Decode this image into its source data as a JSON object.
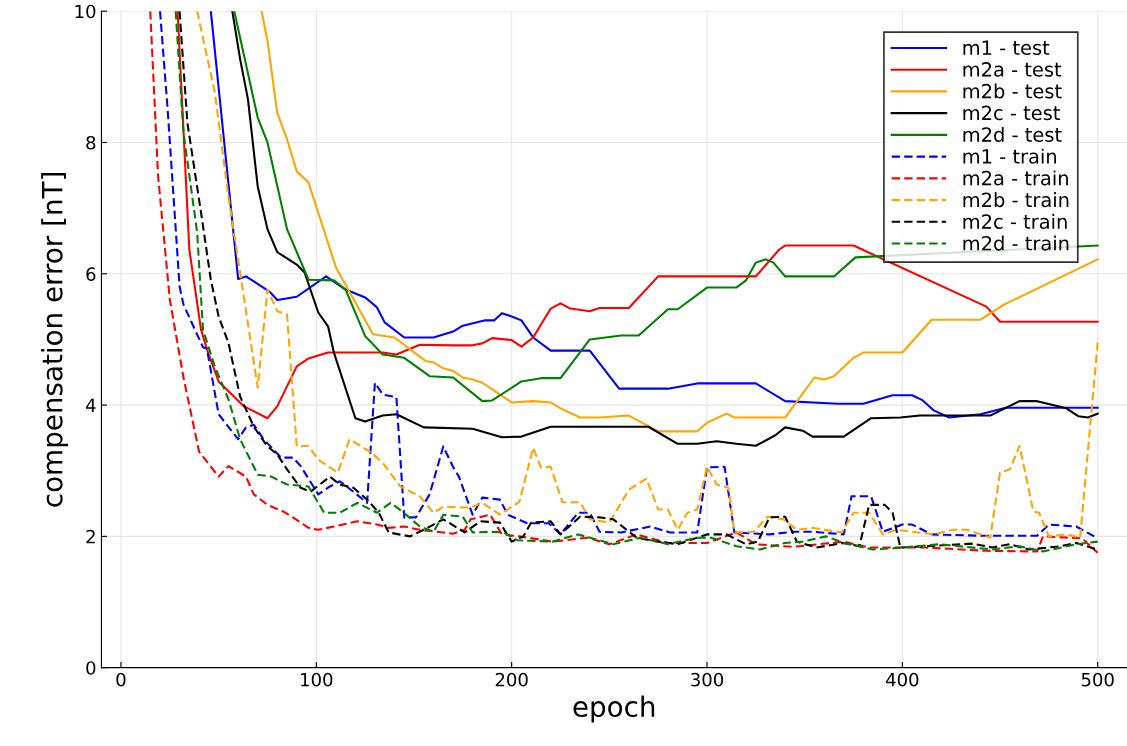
{
  "chart_data": {
    "type": "line",
    "xlabel": "epoch",
    "ylabel": "compensation error [nT]",
    "xlim": [
      -10,
      515
    ],
    "ylim": [
      0,
      10
    ],
    "xticks": [
      0,
      100,
      200,
      300,
      400,
      500
    ],
    "yticks": [
      0,
      2,
      4,
      6,
      8,
      10
    ],
    "grid": true,
    "legend": "top right",
    "marker": "none",
    "series": [
      {
        "name": "m1 - test",
        "color": "#0000ff",
        "line_style": "solid",
        "x": [
          46,
          60,
          64,
          76,
          80,
          90,
          105,
          115,
          125,
          131,
          135,
          145,
          153,
          160,
          170,
          175,
          186,
          191,
          195,
          200,
          205,
          211,
          220,
          240,
          255,
          280,
          295,
          325,
          340,
          367,
          380,
          395,
          405,
          410,
          416,
          424,
          440,
          453,
          500
        ],
        "values": [
          10,
          5.92,
          5.96,
          5.73,
          5.6,
          5.65,
          5.96,
          5.76,
          5.64,
          5.49,
          5.26,
          5.03,
          5.03,
          5.03,
          5.12,
          5.21,
          5.29,
          5.29,
          5.4,
          5.35,
          5.29,
          5.03,
          4.83,
          4.83,
          4.25,
          4.25,
          4.33,
          4.33,
          4.06,
          4.02,
          4.02,
          4.15,
          4.15,
          4.08,
          3.92,
          3.81,
          3.86,
          3.96,
          3.96
        ]
      },
      {
        "name": "m2a - test",
        "color": "#ff0000",
        "line_style": "solid",
        "x": [
          29,
          35,
          41,
          44,
          50,
          63,
          75,
          80,
          90,
          96,
          106,
          134,
          141,
          153,
          170,
          180,
          185,
          190,
          200,
          205,
          211,
          220,
          225,
          230,
          240,
          245,
          260,
          275,
          325,
          337,
          340,
          375,
          443,
          450,
          500
        ],
        "values": [
          10,
          6.37,
          5.15,
          4.85,
          4.36,
          3.98,
          3.8,
          3.98,
          4.59,
          4.71,
          4.8,
          4.8,
          4.77,
          4.92,
          4.91,
          4.91,
          4.94,
          5.02,
          4.99,
          4.89,
          5.03,
          5.47,
          5.55,
          5.47,
          5.43,
          5.48,
          5.48,
          5.96,
          5.96,
          6.37,
          6.43,
          6.43,
          5.5,
          5.27,
          5.27
        ]
      },
      {
        "name": "m2b - test",
        "color": "#ffa500",
        "line_style": "solid",
        "x": [
          72,
          75,
          80,
          85,
          90,
          96,
          110,
          129,
          140,
          156,
          160,
          165,
          170,
          175,
          180,
          185,
          200,
          211,
          220,
          225,
          235,
          245,
          260,
          275,
          295,
          300,
          310,
          314,
          337,
          340,
          355,
          360,
          365,
          375,
          380,
          400,
          415,
          440,
          452,
          500
        ],
        "values": [
          10,
          9.55,
          8.45,
          8.05,
          7.56,
          7.39,
          6.1,
          5.08,
          5.03,
          4.67,
          4.65,
          4.56,
          4.52,
          4.42,
          4.39,
          4.34,
          4.04,
          4.06,
          4.04,
          3.95,
          3.81,
          3.81,
          3.84,
          3.6,
          3.6,
          3.73,
          3.87,
          3.81,
          3.81,
          3.81,
          4.42,
          4.39,
          4.44,
          4.72,
          4.8,
          4.8,
          5.3,
          5.3,
          5.53,
          6.22
        ]
      },
      {
        "name": "m2c - test",
        "color": "#000000",
        "line_style": "solid",
        "x": [
          57,
          61,
          65,
          70,
          75,
          80,
          90,
          94,
          101,
          106,
          109,
          120,
          125,
          134,
          141,
          155,
          180,
          195,
          205,
          220,
          270,
          285,
          295,
          305,
          315,
          325,
          335,
          340,
          349,
          354,
          370,
          384,
          399,
          409,
          445,
          460,
          469,
          484,
          490,
          495,
          500
        ],
        "values": [
          10,
          9.27,
          8.66,
          7.33,
          6.68,
          6.33,
          6.14,
          6.02,
          5.41,
          5.2,
          4.8,
          3.8,
          3.75,
          3.84,
          3.86,
          3.66,
          3.64,
          3.51,
          3.52,
          3.67,
          3.67,
          3.41,
          3.41,
          3.45,
          3.41,
          3.38,
          3.54,
          3.66,
          3.61,
          3.52,
          3.52,
          3.8,
          3.81,
          3.84,
          3.84,
          4.06,
          4.06,
          3.95,
          3.83,
          3.81,
          3.87
        ]
      },
      {
        "name": "m2d - test",
        "color": "#008000",
        "line_style": "solid",
        "x": [
          58,
          70,
          75,
          85,
          96,
          109,
          115,
          125,
          134,
          145,
          158,
          170,
          185,
          190,
          205,
          215,
          225,
          240,
          256,
          265,
          280,
          285,
          300,
          315,
          320,
          325,
          330,
          334,
          340,
          365,
          376,
          500
        ],
        "values": [
          10,
          8.38,
          8.0,
          6.68,
          5.91,
          5.9,
          5.76,
          5.05,
          4.77,
          4.72,
          4.44,
          4.42,
          4.06,
          4.07,
          4.36,
          4.41,
          4.41,
          5.0,
          5.06,
          5.06,
          5.46,
          5.46,
          5.79,
          5.79,
          5.9,
          6.17,
          6.22,
          6.17,
          5.96,
          5.96,
          6.25,
          6.43
        ]
      },
      {
        "name": "m1 - train",
        "color": "#0000ff",
        "line_style": "dashed",
        "x": [
          20,
          24,
          30,
          32,
          42,
          44,
          50,
          60,
          64,
          68,
          73,
          82,
          88,
          92,
          101,
          107,
          112,
          119,
          126,
          130,
          134,
          141,
          145,
          151,
          158,
          165,
          170,
          173,
          180,
          185,
          194,
          198,
          208,
          219,
          225,
          234,
          240,
          245,
          256,
          271,
          281,
          295,
          300,
          309,
          314,
          332,
          344,
          354,
          370,
          374,
          384,
          390,
          400,
          405,
          415,
          440,
          469,
          475,
          489,
          500
        ],
        "values": [
          10,
          8.46,
          5.81,
          5.53,
          4.88,
          4.86,
          3.86,
          3.48,
          3.66,
          3.7,
          3.48,
          3.2,
          3.2,
          3.07,
          2.64,
          2.76,
          2.84,
          2.68,
          2.51,
          4.34,
          4.16,
          4.12,
          2.29,
          2.29,
          2.64,
          3.37,
          3.06,
          2.91,
          2.33,
          2.59,
          2.56,
          2.33,
          2.2,
          2.2,
          2.03,
          2.36,
          2.36,
          2.07,
          2.06,
          2.15,
          2.06,
          2.06,
          3.05,
          3.06,
          2.06,
          2.03,
          2.07,
          2.07,
          2.03,
          2.61,
          2.61,
          2.07,
          2.18,
          2.18,
          2.03,
          2.01,
          2.01,
          2.18,
          2.15,
          1.97
        ]
      },
      {
        "name": "m2a - train",
        "color": "#ff0000",
        "line_style": "dashed",
        "x": [
          15,
          19,
          25,
          32,
          40,
          50,
          55,
          64,
          68,
          75,
          83,
          88,
          96,
          101,
          109,
          121,
          131,
          137,
          145,
          153,
          170,
          176,
          179,
          189,
          195,
          204,
          221,
          239,
          250,
          264,
          280,
          300,
          315,
          325,
          344,
          370,
          383,
          412,
          443,
          469,
          472,
          492,
          500
        ],
        "values": [
          10,
          7.49,
          5.61,
          4.42,
          3.29,
          2.91,
          3.07,
          2.91,
          2.64,
          2.48,
          2.38,
          2.29,
          2.13,
          2.1,
          2.15,
          2.23,
          2.18,
          2.13,
          2.15,
          2.1,
          2.04,
          2.1,
          2.26,
          2.33,
          2.03,
          2.0,
          1.92,
          1.98,
          1.88,
          2.03,
          1.9,
          1.9,
          2.06,
          1.88,
          1.84,
          1.92,
          1.83,
          1.83,
          1.78,
          1.77,
          2.0,
          1.97,
          1.75
        ]
      },
      {
        "name": "m2b - train",
        "color": "#ffa500",
        "line_style": "dashed",
        "x": [
          39,
          48,
          55,
          61,
          70,
          75,
          80,
          85,
          90,
          96,
          101,
          111,
          117,
          128,
          134,
          143,
          153,
          160,
          165,
          179,
          185,
          194,
          204,
          211,
          215,
          220,
          226,
          235,
          240,
          250,
          260,
          269,
          275,
          280,
          285,
          290,
          295,
          300,
          305,
          311,
          314,
          324,
          331,
          339,
          346,
          354,
          369,
          375,
          383,
          390,
          397,
          416,
          426,
          433,
          445,
          450,
          455,
          460,
          464,
          467,
          470,
          475,
          484,
          491,
          500
        ],
        "values": [
          10,
          8.77,
          7.18,
          6.02,
          4.27,
          5.76,
          5.43,
          5.38,
          3.37,
          3.38,
          3.17,
          2.97,
          3.48,
          3.28,
          3.12,
          2.76,
          2.61,
          2.36,
          2.45,
          2.44,
          2.51,
          2.33,
          2.53,
          3.35,
          3.05,
          3.06,
          2.52,
          2.52,
          2.26,
          2.21,
          2.71,
          2.88,
          2.41,
          2.41,
          2.1,
          2.36,
          2.41,
          3.06,
          2.79,
          2.74,
          2.06,
          2.07,
          2.3,
          2.26,
          2.1,
          2.13,
          2.06,
          2.36,
          2.36,
          2.03,
          2.1,
          2.03,
          2.1,
          2.1,
          1.98,
          2.97,
          3.02,
          3.38,
          2.82,
          2.38,
          2.36,
          2.0,
          2.03,
          1.98,
          4.95
        ]
      },
      {
        "name": "m2c - train",
        "color": "#000000",
        "line_style": "dashed",
        "x": [
          30,
          34,
          41,
          46,
          50,
          55,
          61,
          68,
          75,
          80,
          85,
          92,
          97,
          107,
          112,
          119,
          126,
          132,
          137,
          148,
          155,
          165,
          176,
          184,
          194,
          200,
          206,
          210,
          220,
          225,
          235,
          245,
          252,
          264,
          275,
          285,
          300,
          310,
          320,
          326,
          332,
          340,
          346,
          356,
          370,
          378,
          383,
          391,
          395,
          399,
          419,
          436,
          446,
          455,
          465,
          481,
          489,
          500
        ],
        "values": [
          10,
          8.3,
          6.93,
          5.91,
          5.35,
          4.95,
          4.13,
          3.67,
          3.37,
          3.25,
          3.02,
          2.74,
          2.68,
          2.91,
          2.79,
          2.74,
          2.56,
          2.36,
          2.06,
          2.0,
          2.1,
          2.26,
          2.06,
          2.23,
          2.21,
          1.92,
          2.0,
          2.21,
          2.23,
          2.03,
          2.3,
          2.29,
          2.26,
          1.98,
          1.92,
          1.88,
          2.03,
          2.03,
          1.88,
          1.92,
          2.29,
          2.3,
          1.92,
          1.83,
          1.9,
          1.85,
          2.48,
          2.48,
          2.36,
          1.83,
          1.86,
          1.89,
          1.83,
          1.88,
          1.8,
          1.85,
          1.9,
          1.8
        ]
      },
      {
        "name": "m2d - train",
        "color": "#008000",
        "line_style": "dashed",
        "x": [
          28,
          32,
          39,
          42,
          48,
          55,
          61,
          70,
          77,
          85,
          96,
          104,
          112,
          121,
          131,
          138,
          144,
          153,
          160,
          165,
          175,
          180,
          189,
          196,
          203,
          221,
          234,
          252,
          266,
          280,
          295,
          302,
          315,
          327,
          340,
          349,
          361,
          370,
          385,
          400,
          419,
          429,
          446,
          460,
          472,
          489,
          500
        ],
        "values": [
          10,
          8.15,
          6.63,
          5.15,
          4.59,
          4.09,
          3.48,
          2.94,
          2.91,
          2.79,
          2.76,
          2.36,
          2.36,
          2.51,
          2.36,
          2.51,
          2.38,
          2.15,
          2.07,
          2.33,
          2.3,
          2.06,
          2.07,
          2.06,
          1.94,
          1.92,
          2.03,
          1.88,
          1.98,
          1.88,
          1.98,
          1.98,
          1.85,
          1.8,
          1.9,
          1.92,
          2.0,
          1.9,
          1.8,
          1.83,
          1.88,
          1.85,
          1.8,
          1.85,
          1.77,
          1.88,
          1.92
        ]
      }
    ]
  }
}
